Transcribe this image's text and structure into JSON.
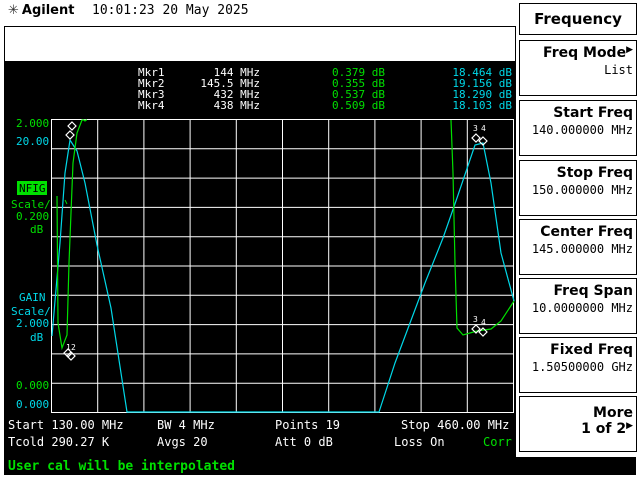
{
  "header": {
    "brand": "Agilent",
    "logo_icon": "agilent-sparkle-icon",
    "time": "10:01:23",
    "date": "20 May 2025"
  },
  "markers": [
    {
      "name": "Mkr1",
      "freq": "144 MHz",
      "nfig": "0.379 dB",
      "gain": "18.464 dB"
    },
    {
      "name": "Mkr2",
      "freq": "145.5 MHz",
      "nfig": "0.355 dB",
      "gain": "19.156 dB"
    },
    {
      "name": "Mkr3",
      "freq": "432 MHz",
      "nfig": "0.537 dB",
      "gain": "18.290 dB"
    },
    {
      "name": "Mkr4",
      "freq": "438 MHz",
      "nfig": "0.509 dB",
      "gain": "18.103 dB"
    }
  ],
  "axis": {
    "nfig_top": "2.000",
    "gain_top": "20.00",
    "nfig_label": "NFIG",
    "nfig_scale": "Scale/",
    "nfig_scale_val": "0.200",
    "nfig_unit": "dB",
    "gain_label": "GAIN",
    "gain_scale": "Scale/",
    "gain_scale_val": "2.000",
    "gain_unit": "dB",
    "nfig_bottom": "0.000",
    "gain_bottom": "0.000"
  },
  "footer": {
    "start": "Start 130.00 MHz",
    "bw": "BW 4 MHz",
    "points": "Points 19",
    "stop": "Stop 460.00 MHz",
    "tcold": "Tcold 290.27 K",
    "avgs": "Avgs 20",
    "att": "Att 0 dB",
    "loss": "Loss On",
    "corr": "Corr"
  },
  "status": "User cal will be interpolated",
  "softkeys": {
    "title": "Frequency",
    "items": [
      {
        "label": "Freq Mode",
        "value": "List"
      },
      {
        "label": "Start Freq",
        "value": "140.000000 MHz"
      },
      {
        "label": "Stop Freq",
        "value": "150.000000 MHz"
      },
      {
        "label": "Center Freq",
        "value": "145.000000 MHz"
      },
      {
        "label": "Freq Span",
        "value": "10.0000000 MHz"
      },
      {
        "label": "Fixed Freq",
        "value": "1.50500000 GHz"
      },
      {
        "label": "More",
        "value": "1 of 2"
      }
    ]
  },
  "colors": {
    "nfig": "#00e000",
    "gain": "#00d8e8",
    "background": "#000000",
    "grid": "#ffffff"
  }
}
